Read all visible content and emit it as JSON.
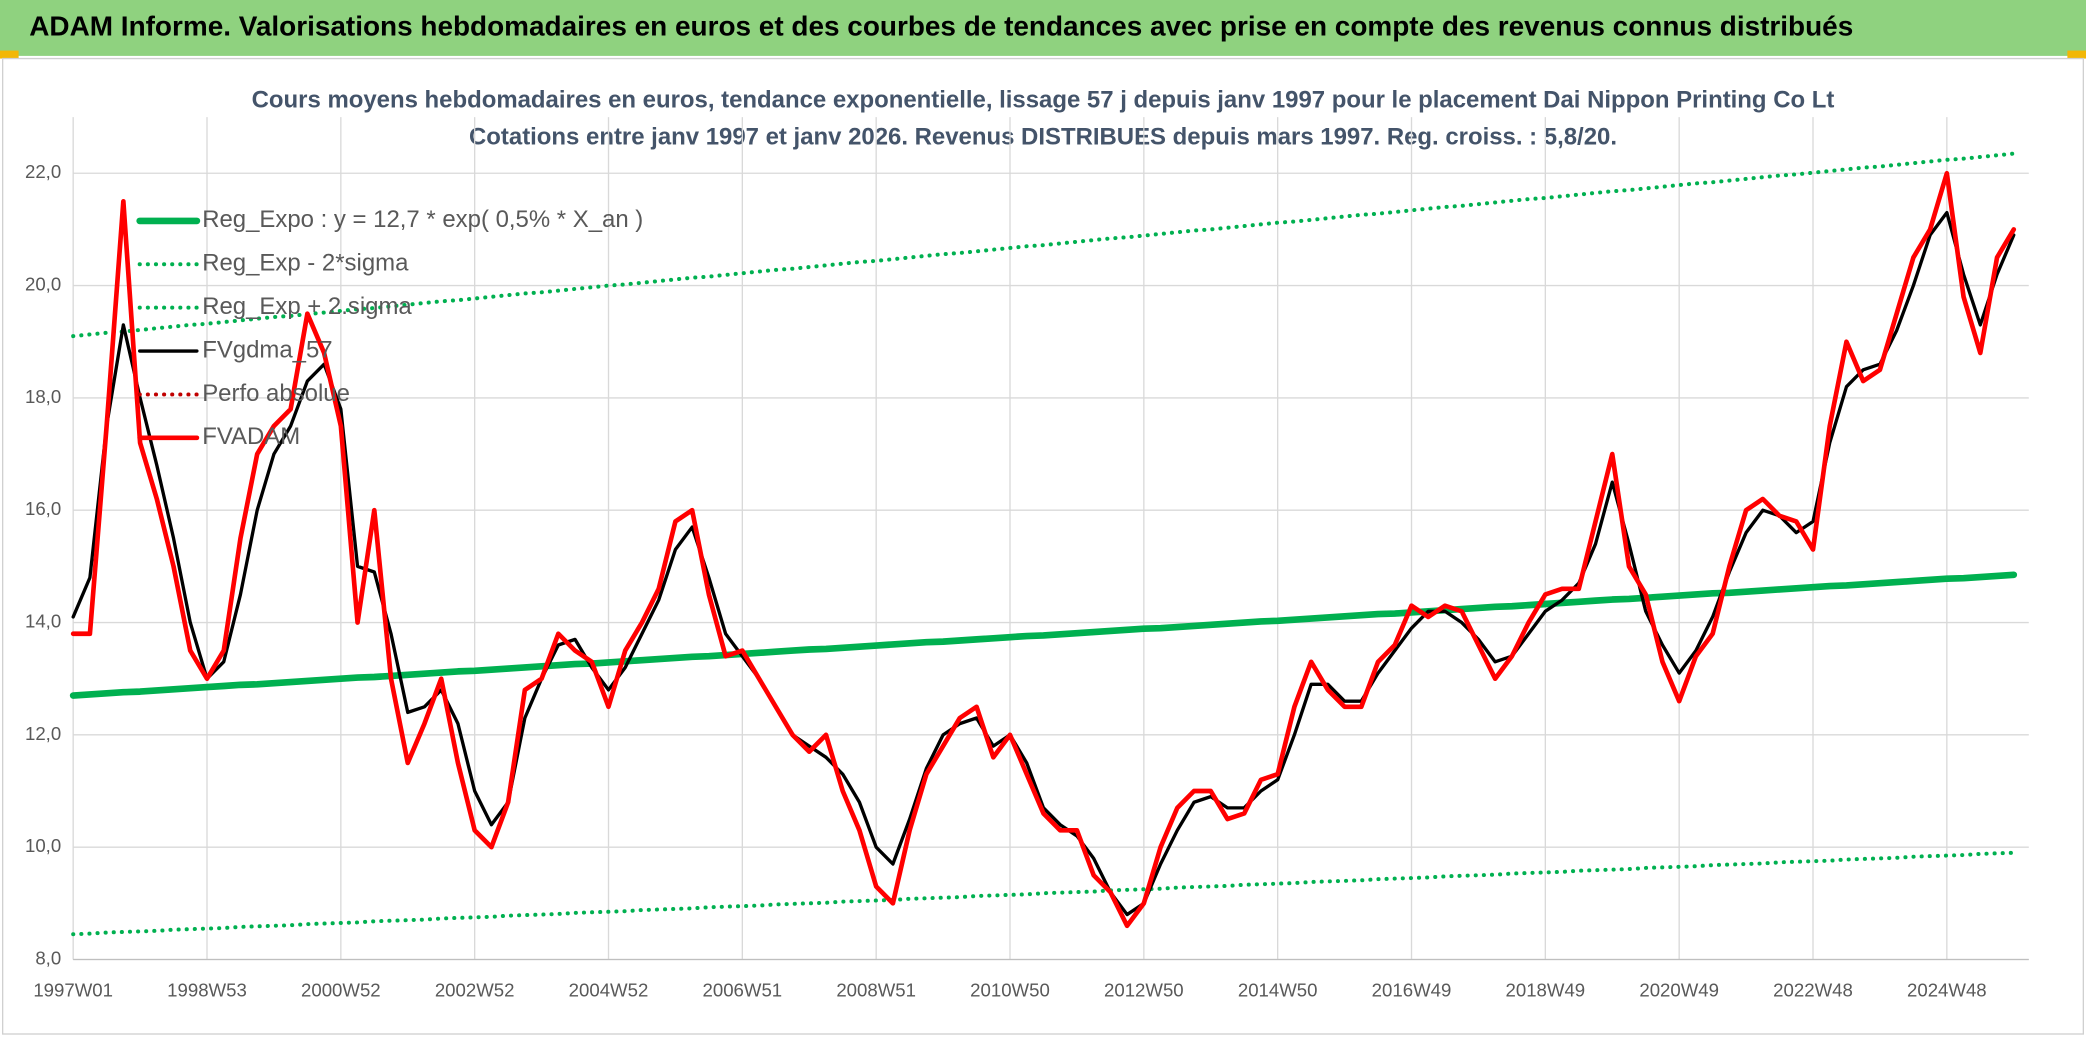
{
  "header": {
    "title": "ADAM Informe. Valorisations hebdomadaires en euros et des courbes de tendances avec prise en compte des revenus connus distribués"
  },
  "chart_data": {
    "type": "line",
    "title": "Cours moyens hebdomadaires en euros, tendance exponentielle, lissage 57 j depuis janv 1997 pour le placement Dai Nippon Printing Co Lt",
    "subtitle": "Cotations entre janv 1997 et janv 2026. Revenus DISTRIBUES depuis mars 1997. Reg. croiss. : 5,8/20.",
    "grid": true,
    "legend": "upper left",
    "ylim": [
      8,
      23
    ],
    "yticks": [
      {
        "value": 8,
        "label": "8,0"
      },
      {
        "value": 10,
        "label": "10,0"
      },
      {
        "value": 12,
        "label": "12,0"
      },
      {
        "value": 14,
        "label": "14,0"
      },
      {
        "value": 16,
        "label": "16,0"
      },
      {
        "value": 18,
        "label": "18,0"
      },
      {
        "value": 20,
        "label": "20,0"
      },
      {
        "value": 22,
        "label": "22,0"
      }
    ],
    "categories": [
      "1997W01",
      null,
      null,
      null,
      null,
      null,
      null,
      null,
      "1998W53",
      null,
      null,
      null,
      null,
      null,
      null,
      null,
      "2000W52",
      null,
      null,
      null,
      null,
      null,
      null,
      null,
      "2002W52",
      null,
      null,
      null,
      null,
      null,
      null,
      null,
      "2004W52",
      null,
      null,
      null,
      null,
      null,
      null,
      null,
      "2006W51",
      null,
      null,
      null,
      null,
      null,
      null,
      null,
      "2008W51",
      null,
      null,
      null,
      null,
      null,
      null,
      null,
      "2010W50",
      null,
      null,
      null,
      null,
      null,
      null,
      null,
      "2012W50",
      null,
      null,
      null,
      null,
      null,
      null,
      null,
      "2014W50",
      null,
      null,
      null,
      null,
      null,
      null,
      null,
      "2016W49",
      null,
      null,
      null,
      null,
      null,
      null,
      null,
      "2018W49",
      null,
      null,
      null,
      null,
      null,
      null,
      null,
      "2020W49",
      null,
      null,
      null,
      null,
      null,
      null,
      null,
      "2022W48",
      null,
      null,
      null,
      null,
      null,
      null,
      null,
      "2024W48",
      null,
      null,
      null,
      null
    ],
    "series": [
      {
        "name": "Reg_Expo : y = 12,7 * exp( 0,5% *  X_an )",
        "color": "#00b050",
        "style": "thick",
        "values": [
          12.7,
          12.72,
          12.74,
          12.76,
          12.77,
          12.79,
          12.81,
          12.83,
          12.85,
          12.87,
          12.89,
          12.9,
          12.92,
          12.94,
          12.96,
          12.98,
          13.0,
          13.02,
          13.03,
          13.05,
          13.07,
          13.09,
          13.11,
          13.13,
          13.14,
          13.16,
          13.18,
          13.2,
          13.22,
          13.24,
          13.26,
          13.27,
          13.29,
          13.31,
          13.33,
          13.35,
          13.37,
          13.39,
          13.4,
          13.42,
          13.44,
          13.46,
          13.48,
          13.5,
          13.52,
          13.53,
          13.55,
          13.57,
          13.59,
          13.61,
          13.63,
          13.65,
          13.66,
          13.68,
          13.7,
          13.72,
          13.74,
          13.76,
          13.77,
          13.79,
          13.81,
          13.83,
          13.85,
          13.87,
          13.89,
          13.9,
          13.92,
          13.94,
          13.96,
          13.98,
          14.0,
          14.02,
          14.03,
          14.05,
          14.07,
          14.09,
          14.11,
          14.13,
          14.15,
          14.16,
          14.18,
          14.2,
          14.22,
          14.24,
          14.26,
          14.28,
          14.29,
          14.31,
          14.33,
          14.35,
          14.37,
          14.39,
          14.41,
          14.42,
          14.44,
          14.46,
          14.48,
          14.5,
          14.52,
          14.53,
          14.55,
          14.57,
          14.59,
          14.61,
          14.63,
          14.65,
          14.66,
          14.68,
          14.7,
          14.72,
          14.74,
          14.76,
          14.78,
          14.79,
          14.81,
          14.83,
          14.85
        ]
      },
      {
        "name": "Reg_Exp - 2*sigma",
        "color": "#00b050",
        "style": "dotted",
        "values": [
          8.45,
          8.46,
          8.48,
          8.49,
          8.5,
          8.51,
          8.53,
          8.54,
          8.55,
          8.56,
          8.58,
          8.59,
          8.6,
          8.61,
          8.63,
          8.64,
          8.65,
          8.66,
          8.68,
          8.69,
          8.7,
          8.71,
          8.73,
          8.74,
          8.75,
          8.76,
          8.78,
          8.79,
          8.8,
          8.81,
          8.83,
          8.84,
          8.85,
          8.86,
          8.88,
          8.89,
          8.9,
          8.91,
          8.93,
          8.94,
          8.95,
          8.96,
          8.98,
          8.99,
          9.0,
          9.01,
          9.03,
          9.04,
          9.05,
          9.06,
          9.08,
          9.09,
          9.1,
          9.11,
          9.13,
          9.14,
          9.15,
          9.16,
          9.18,
          9.19,
          9.2,
          9.21,
          9.23,
          9.24,
          9.25,
          9.26,
          9.28,
          9.29,
          9.3,
          9.31,
          9.33,
          9.34,
          9.35,
          9.36,
          9.38,
          9.39,
          9.4,
          9.41,
          9.43,
          9.44,
          9.45,
          9.46,
          9.48,
          9.49,
          9.5,
          9.51,
          9.53,
          9.54,
          9.55,
          9.56,
          9.58,
          9.59,
          9.6,
          9.61,
          9.63,
          9.64,
          9.65,
          9.66,
          9.68,
          9.69,
          9.7,
          9.71,
          9.73,
          9.74,
          9.75,
          9.76,
          9.78,
          9.79,
          9.8,
          9.81,
          9.83,
          9.84,
          9.85,
          9.86,
          9.88,
          9.89,
          9.9
        ]
      },
      {
        "name": "Reg_Exp + 2.sigma",
        "color": "#00b050",
        "style": "dotted",
        "values": [
          19.1,
          19.13,
          19.16,
          19.18,
          19.21,
          19.24,
          19.27,
          19.3,
          19.32,
          19.35,
          19.38,
          19.41,
          19.44,
          19.46,
          19.49,
          19.52,
          19.55,
          19.58,
          19.6,
          19.63,
          19.66,
          19.69,
          19.72,
          19.74,
          19.77,
          19.8,
          19.83,
          19.86,
          19.88,
          19.91,
          19.94,
          19.97,
          20.0,
          20.02,
          20.05,
          20.08,
          20.11,
          20.14,
          20.16,
          20.19,
          20.22,
          20.25,
          20.28,
          20.3,
          20.33,
          20.36,
          20.39,
          20.42,
          20.44,
          20.47,
          20.5,
          20.53,
          20.56,
          20.58,
          20.61,
          20.64,
          20.67,
          20.7,
          20.72,
          20.75,
          20.78,
          20.81,
          20.84,
          20.86,
          20.89,
          20.92,
          20.95,
          20.98,
          21.0,
          21.03,
          21.06,
          21.09,
          21.12,
          21.14,
          21.17,
          21.2,
          21.23,
          21.26,
          21.28,
          21.31,
          21.34,
          21.37,
          21.4,
          21.42,
          21.45,
          21.48,
          21.51,
          21.54,
          21.56,
          21.59,
          21.62,
          21.65,
          21.68,
          21.7,
          21.73,
          21.76,
          21.79,
          21.82,
          21.84,
          21.87,
          21.9,
          21.93,
          21.96,
          21.98,
          22.01,
          22.04,
          22.07,
          22.1,
          22.12,
          22.15,
          22.18,
          22.21,
          22.24,
          22.26,
          22.29,
          22.32,
          22.35
        ]
      },
      {
        "name": "FVgdma_57",
        "color": "#000000",
        "style": "solid",
        "values": [
          14.1,
          14.8,
          17.5,
          19.3,
          18.0,
          16.8,
          15.5,
          14.0,
          13.0,
          13.3,
          14.5,
          16.0,
          17.0,
          17.5,
          18.3,
          18.6,
          17.8,
          15.0,
          14.9,
          13.8,
          12.4,
          12.5,
          12.8,
          12.2,
          11.0,
          10.4,
          10.8,
          12.3,
          13.0,
          13.6,
          13.7,
          13.2,
          12.8,
          13.2,
          13.8,
          14.4,
          15.3,
          15.7,
          14.8,
          13.8,
          13.4,
          13.0,
          12.5,
          12.0,
          11.8,
          11.6,
          11.3,
          10.8,
          10.0,
          9.7,
          10.5,
          11.4,
          12.0,
          12.2,
          12.3,
          11.8,
          12.0,
          11.5,
          10.7,
          10.4,
          10.2,
          9.8,
          9.2,
          8.8,
          9.0,
          9.7,
          10.3,
          10.8,
          10.9,
          10.7,
          10.7,
          11.0,
          11.2,
          12.0,
          12.9,
          12.9,
          12.6,
          12.6,
          13.1,
          13.5,
          13.9,
          14.2,
          14.2,
          14.0,
          13.7,
          13.3,
          13.4,
          13.8,
          14.2,
          14.4,
          14.7,
          15.4,
          16.5,
          15.4,
          14.2,
          13.6,
          13.1,
          13.5,
          14.1,
          14.9,
          15.6,
          16.0,
          15.9,
          15.6,
          15.8,
          17.2,
          18.2,
          18.5,
          18.6,
          19.2,
          20.0,
          20.9,
          21.3,
          20.2,
          19.3,
          20.2,
          20.9
        ]
      },
      {
        "name": "Perfo absolue",
        "color": "#c00000",
        "style": "dotted"
      },
      {
        "name": "FVADAM",
        "color": "#ff0000",
        "style": "solid",
        "values": [
          13.8,
          13.8,
          17.5,
          21.5,
          17.2,
          16.2,
          15.0,
          13.5,
          13.0,
          13.5,
          15.5,
          17.0,
          17.5,
          17.8,
          19.5,
          18.8,
          17.5,
          14.0,
          16.0,
          13.0,
          11.5,
          12.2,
          13.0,
          11.5,
          10.3,
          10.0,
          10.8,
          12.8,
          13.0,
          13.8,
          13.5,
          13.3,
          12.5,
          13.5,
          14.0,
          14.6,
          15.8,
          16.0,
          14.5,
          13.4,
          13.5,
          13.0,
          12.5,
          12.0,
          11.7,
          12.0,
          11.0,
          10.3,
          9.3,
          9.0,
          10.3,
          11.3,
          11.8,
          12.3,
          12.5,
          11.6,
          12.0,
          11.3,
          10.6,
          10.3,
          10.3,
          9.5,
          9.2,
          8.6,
          9.0,
          10.0,
          10.7,
          11.0,
          11.0,
          10.5,
          10.6,
          11.2,
          11.3,
          12.5,
          13.3,
          12.8,
          12.5,
          12.5,
          13.3,
          13.6,
          14.3,
          14.1,
          14.3,
          14.2,
          13.6,
          13.0,
          13.4,
          14.0,
          14.5,
          14.6,
          14.6,
          15.8,
          17.0,
          15.0,
          14.5,
          13.3,
          12.6,
          13.4,
          13.8,
          15.0,
          16.0,
          16.2,
          15.9,
          15.8,
          15.3,
          17.5,
          19.0,
          18.3,
          18.5,
          19.5,
          20.5,
          21.0,
          22.0,
          19.8,
          18.8,
          20.5,
          21.0
        ]
      }
    ]
  }
}
